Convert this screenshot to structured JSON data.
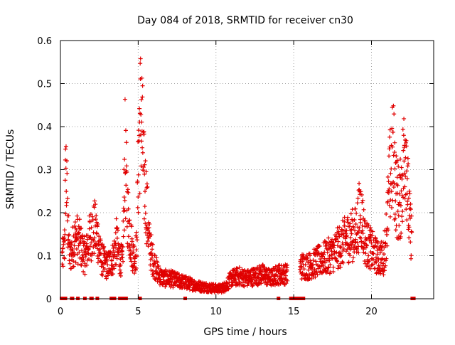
{
  "chart_data": {
    "type": "scatter",
    "title": "Day 084 of 2018, SRMTID for receiver cn30",
    "xlabel": "GPS time / hours",
    "ylabel": "SRMTID / TECUs",
    "xlim": [
      0,
      24
    ],
    "ylim": [
      0,
      0.6
    ],
    "x_ticks": [
      0,
      5,
      10,
      15,
      20
    ],
    "x_tick_labels": [
      "0",
      "5",
      "10",
      "15",
      "20"
    ],
    "y_ticks": [
      0,
      0.1,
      0.2,
      0.3,
      0.4,
      0.5,
      0.6
    ],
    "y_tick_labels": [
      "0",
      "0.1",
      "0.2",
      "0.3",
      "0.4",
      "0.5",
      "0.6"
    ],
    "grid": true,
    "marker": "+",
    "series_color": "#e00000",
    "series": [
      {
        "name": "SRMTID",
        "profile_x": [
          0.1,
          0.25,
          0.35,
          0.45,
          0.6,
          0.8,
          1.0,
          1.2,
          1.4,
          1.6,
          1.8,
          2.0,
          2.2,
          2.4,
          2.6,
          2.8,
          3.0,
          3.2,
          3.4,
          3.6,
          3.8,
          4.0,
          4.15,
          4.3,
          4.5,
          4.7,
          4.9,
          5.05,
          5.2,
          5.35,
          5.5,
          5.7,
          5.9,
          6.1,
          6.3,
          6.6,
          7.0,
          7.5,
          8.0,
          8.5,
          9.0,
          9.5,
          10.0,
          10.3,
          10.6,
          11.0,
          11.5,
          12.0,
          12.5,
          13.0,
          13.5,
          14.0,
          14.5,
          14.8,
          15.5,
          16.0,
          16.5,
          17.0,
          17.5,
          18.0,
          18.5,
          19.0,
          19.3,
          19.6,
          20.0,
          20.4,
          20.8,
          21.0,
          21.2,
          21.4,
          21.6,
          21.8,
          22.0,
          22.2,
          22.4,
          22.6
        ],
        "profile_y": [
          0.1,
          0.12,
          0.33,
          0.2,
          0.1,
          0.13,
          0.15,
          0.14,
          0.12,
          0.1,
          0.14,
          0.16,
          0.17,
          0.15,
          0.1,
          0.09,
          0.08,
          0.09,
          0.1,
          0.14,
          0.1,
          0.09,
          0.35,
          0.22,
          0.15,
          0.1,
          0.12,
          0.4,
          0.47,
          0.3,
          0.25,
          0.14,
          0.1,
          0.08,
          0.06,
          0.05,
          0.05,
          0.045,
          0.04,
          0.035,
          0.03,
          0.028,
          0.025,
          0.025,
          0.03,
          0.05,
          0.055,
          0.05,
          0.055,
          0.06,
          0.05,
          0.06,
          0.06,
          0.06,
          0.08,
          0.08,
          0.09,
          0.1,
          0.11,
          0.13,
          0.15,
          0.16,
          0.22,
          0.14,
          0.12,
          0.1,
          0.1,
          0.18,
          0.3,
          0.35,
          0.26,
          0.22,
          0.3,
          0.4,
          0.2,
          0.15
        ],
        "near_zero_x": [
          0.05,
          0.1,
          0.15,
          0.2,
          0.3,
          0.7,
          0.75,
          1.1,
          1.55,
          1.95,
          2.0,
          2.35,
          3.25,
          3.45,
          3.8,
          3.95,
          4.05,
          4.2,
          5.1,
          8.0,
          14.0,
          14.8,
          14.95,
          15.0,
          15.15,
          15.3,
          15.45,
          15.6,
          22.6,
          22.7
        ]
      }
    ]
  }
}
